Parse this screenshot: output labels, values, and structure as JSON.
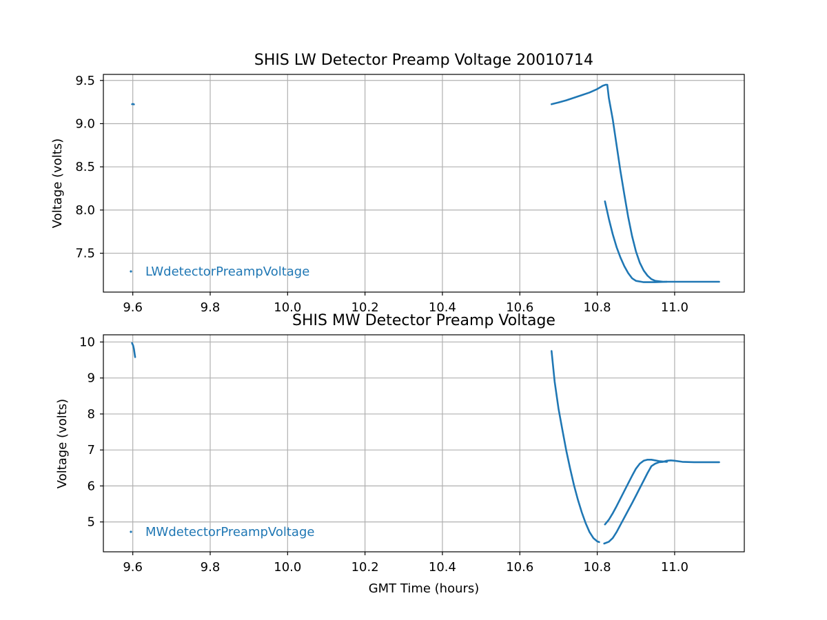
{
  "figure": {
    "series_color": "#1f77b4",
    "grid_color": "#b0b0b0"
  },
  "chart_data": [
    {
      "type": "scatter",
      "title": "SHIS LW Detector Preamp Voltage 20010714",
      "xlabel": "",
      "ylabel": "Voltage (volts)",
      "xlim": [
        9.524,
        11.18
      ],
      "ylim": [
        7.05,
        9.57
      ],
      "xticks": [
        9.6,
        9.8,
        10.0,
        10.2,
        10.4,
        10.6,
        10.8,
        11.0
      ],
      "xtick_labels": [
        "9.6",
        "9.8",
        "10.0",
        "10.2",
        "10.4",
        "10.6",
        "10.8",
        "11.0"
      ],
      "yticks": [
        7.5,
        8.0,
        8.5,
        9.0,
        9.5
      ],
      "ytick_labels": [
        "7.5",
        "8.0",
        "8.5",
        "9.0",
        "9.5"
      ],
      "grid": true,
      "legend_position": "lower-left",
      "series": [
        {
          "name": "LWdetectorPreampVoltage",
          "segments": [
            [
              [
                9.598,
                9.225
              ],
              [
                9.6,
                9.228
              ],
              [
                9.603,
                9.223
              ]
            ],
            [
              [
                10.682,
                9.225
              ],
              [
                10.7,
                9.245
              ],
              [
                10.72,
                9.27
              ],
              [
                10.74,
                9.3
              ],
              [
                10.76,
                9.33
              ],
              [
                10.78,
                9.36
              ],
              [
                10.8,
                9.4
              ],
              [
                10.815,
                9.44
              ],
              [
                10.822,
                9.45
              ],
              [
                10.826,
                9.45
              ],
              [
                10.83,
                9.3
              ],
              [
                10.84,
                9.05
              ],
              [
                10.85,
                8.75
              ],
              [
                10.86,
                8.45
              ],
              [
                10.87,
                8.18
              ],
              [
                10.88,
                7.92
              ],
              [
                10.89,
                7.7
              ],
              [
                10.9,
                7.52
              ],
              [
                10.91,
                7.39
              ],
              [
                10.92,
                7.3
              ],
              [
                10.93,
                7.24
              ],
              [
                10.94,
                7.2
              ],
              [
                10.95,
                7.18
              ],
              [
                10.97,
                7.17
              ],
              [
                11.0,
                7.17
              ],
              [
                11.05,
                7.17
              ],
              [
                11.115,
                7.17
              ]
            ],
            [
              [
                10.82,
                8.1
              ],
              [
                10.83,
                7.9
              ],
              [
                10.84,
                7.72
              ],
              [
                10.85,
                7.57
              ],
              [
                10.86,
                7.45
              ],
              [
                10.87,
                7.35
              ],
              [
                10.88,
                7.27
              ],
              [
                10.89,
                7.21
              ],
              [
                10.9,
                7.18
              ],
              [
                10.92,
                7.165
              ],
              [
                10.95,
                7.165
              ],
              [
                10.98,
                7.17
              ]
            ]
          ]
        }
      ]
    },
    {
      "type": "scatter",
      "title": "SHIS MW Detector Preamp Voltage",
      "xlabel": "GMT Time (hours)",
      "ylabel": "Voltage (volts)",
      "xlim": [
        9.524,
        11.18
      ],
      "ylim": [
        4.17,
        10.2
      ],
      "xticks": [
        9.6,
        9.8,
        10.0,
        10.2,
        10.4,
        10.6,
        10.8,
        11.0
      ],
      "xtick_labels": [
        "9.6",
        "9.8",
        "10.0",
        "10.2",
        "10.4",
        "10.6",
        "10.8",
        "11.0"
      ],
      "yticks": [
        5,
        6,
        7,
        8,
        9,
        10
      ],
      "ytick_labels": [
        "5",
        "6",
        "7",
        "8",
        "9",
        "10"
      ],
      "grid": true,
      "legend_position": "lower-left",
      "series": [
        {
          "name": "MWdetectorPreampVoltage",
          "segments": [
            [
              [
                9.598,
                9.97
              ],
              [
                9.601,
                9.9
              ],
              [
                9.603,
                9.8
              ],
              [
                9.605,
                9.65
              ],
              [
                9.606,
                9.58
              ]
            ],
            [
              [
                10.682,
                9.75
              ],
              [
                10.69,
                8.9
              ],
              [
                10.7,
                8.15
              ],
              [
                10.71,
                7.55
              ],
              [
                10.72,
                6.98
              ],
              [
                10.73,
                6.48
              ],
              [
                10.74,
                6.02
              ],
              [
                10.75,
                5.62
              ],
              [
                10.76,
                5.27
              ],
              [
                10.77,
                4.97
              ],
              [
                10.78,
                4.72
              ],
              [
                10.79,
                4.55
              ],
              [
                10.8,
                4.46
              ],
              [
                10.805,
                4.44
              ]
            ],
            [
              [
                10.818,
                4.4
              ],
              [
                10.83,
                4.45
              ],
              [
                10.84,
                4.55
              ],
              [
                10.85,
                4.72
              ],
              [
                10.86,
                4.92
              ],
              [
                10.87,
                5.12
              ],
              [
                10.88,
                5.32
              ],
              [
                10.89,
                5.52
              ],
              [
                10.9,
                5.73
              ],
              [
                10.91,
                5.94
              ],
              [
                10.92,
                6.15
              ],
              [
                10.93,
                6.36
              ],
              [
                10.94,
                6.55
              ],
              [
                10.95,
                6.62
              ],
              [
                10.96,
                6.66
              ],
              [
                10.97,
                6.67
              ],
              [
                10.98,
                6.7
              ],
              [
                10.99,
                6.71
              ],
              [
                11.0,
                6.7
              ],
              [
                11.02,
                6.67
              ],
              [
                11.05,
                6.66
              ],
              [
                11.08,
                6.66
              ],
              [
                11.115,
                6.66
              ]
            ],
            [
              [
                10.82,
                4.93
              ],
              [
                10.83,
                5.06
              ],
              [
                10.84,
                5.24
              ],
              [
                10.85,
                5.44
              ],
              [
                10.86,
                5.65
              ],
              [
                10.87,
                5.86
              ],
              [
                10.88,
                6.07
              ],
              [
                10.89,
                6.28
              ],
              [
                10.9,
                6.48
              ],
              [
                10.91,
                6.62
              ],
              [
                10.92,
                6.7
              ],
              [
                10.93,
                6.73
              ],
              [
                10.94,
                6.73
              ],
              [
                10.95,
                6.71
              ],
              [
                10.96,
                6.69
              ],
              [
                10.97,
                6.68
              ],
              [
                10.98,
                6.67
              ]
            ]
          ]
        }
      ]
    }
  ]
}
